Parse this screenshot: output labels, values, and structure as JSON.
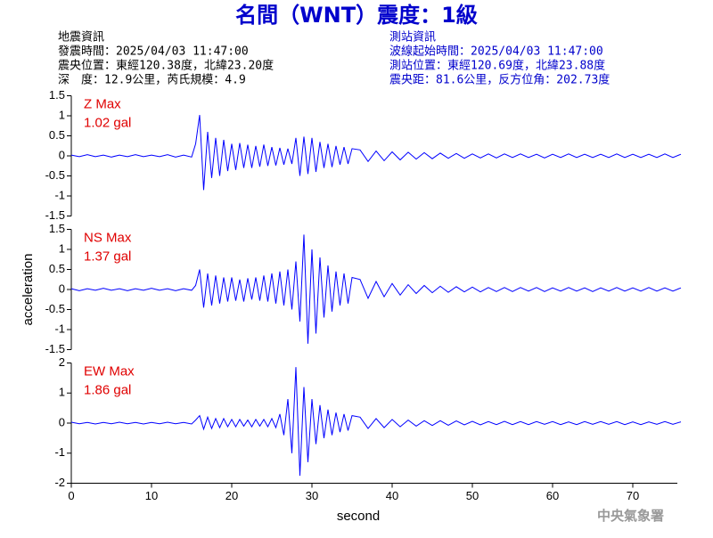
{
  "title": "名間（WNT）震度：1級",
  "event_info": {
    "heading": "地震資訊",
    "lines": [
      "發震時間：2025/04/03 11:47:00",
      "震央位置：東經120.38度，北緯23.20度",
      "深　度：12.9公里，芮氏規模：4.9"
    ]
  },
  "station_info": {
    "heading": "測站資訊",
    "lines": [
      "波線起始時間：2025/04/03 11:47:00",
      "測站位置：東經120.69度，北緯23.88度",
      "震央距：81.6公里，反方位角：202.73度"
    ]
  },
  "footer": "中央氣象署",
  "chart_data": [
    {
      "type": "line",
      "color": "#0000ff",
      "annotations": [
        "Z Max",
        "1.02 gal"
      ],
      "xlim": [
        0,
        76
      ],
      "ylim": [
        -1.5,
        1.5
      ],
      "yticks": [
        -1.5,
        -1,
        -0.5,
        0,
        0.5,
        1,
        1.5
      ],
      "x": [
        0,
        1,
        2,
        3,
        4,
        5,
        6,
        7,
        8,
        9,
        10,
        11,
        12,
        13,
        14,
        15,
        15.5,
        16,
        16.5,
        17,
        17.5,
        18,
        18.5,
        19,
        19.5,
        20,
        20.5,
        21,
        21.5,
        22,
        22.5,
        23,
        23.5,
        24,
        24.5,
        25,
        25.5,
        26,
        26.5,
        27,
        27.5,
        28,
        28.5,
        29,
        29.5,
        30,
        30.5,
        31,
        31.5,
        32,
        32.5,
        33,
        33.5,
        34,
        34.5,
        35,
        36,
        37,
        38,
        39,
        40,
        41,
        42,
        43,
        44,
        45,
        46,
        47,
        48,
        49,
        50,
        51,
        52,
        53,
        54,
        55,
        56,
        57,
        58,
        59,
        60,
        61,
        62,
        63,
        64,
        65,
        66,
        67,
        68,
        69,
        70,
        71,
        72,
        73,
        74,
        75,
        76
      ],
      "values": [
        0.02,
        -0.02,
        0.03,
        -0.02,
        0.02,
        -0.03,
        0.02,
        -0.02,
        0.03,
        -0.02,
        0.02,
        -0.02,
        0.03,
        -0.03,
        0.02,
        -0.03,
        0.3,
        1.02,
        -0.85,
        0.6,
        -0.55,
        0.45,
        -0.5,
        0.4,
        -0.38,
        0.3,
        -0.35,
        0.32,
        -0.3,
        0.28,
        -0.3,
        0.25,
        -0.27,
        0.28,
        -0.25,
        0.22,
        -0.24,
        0.2,
        -0.22,
        0.18,
        -0.2,
        0.45,
        -0.5,
        0.48,
        -0.45,
        0.45,
        -0.4,
        0.35,
        -0.3,
        0.3,
        -0.28,
        0.25,
        -0.22,
        0.22,
        -0.2,
        0.18,
        0.15,
        -0.14,
        0.12,
        -0.12,
        0.1,
        -0.1,
        0.09,
        -0.08,
        0.08,
        -0.07,
        0.07,
        -0.06,
        0.06,
        -0.06,
        0.05,
        -0.05,
        0.05,
        -0.05,
        0.05,
        -0.04,
        0.05,
        -0.04,
        0.04,
        -0.05,
        0.04,
        -0.04,
        0.05,
        -0.04,
        0.04,
        -0.04,
        0.04,
        -0.04,
        0.05,
        -0.04,
        0.04,
        -0.04,
        0.04,
        -0.04,
        0.05,
        -0.04,
        0.04
      ]
    },
    {
      "type": "line",
      "color": "#0000ff",
      "annotations": [
        "NS Max",
        "1.37 gal"
      ],
      "ylabel": "acceleration",
      "xlim": [
        0,
        76
      ],
      "ylim": [
        -1.5,
        1.5
      ],
      "yticks": [
        -1.5,
        -1,
        -0.5,
        0,
        0.5,
        1,
        1.5
      ],
      "x": [
        0,
        1,
        2,
        3,
        4,
        5,
        6,
        7,
        8,
        9,
        10,
        11,
        12,
        13,
        14,
        15,
        15.5,
        16,
        16.5,
        17,
        17.5,
        18,
        18.5,
        19,
        19.5,
        20,
        20.5,
        21,
        21.5,
        22,
        22.5,
        23,
        23.5,
        24,
        24.5,
        25,
        25.5,
        26,
        26.5,
        27,
        27.5,
        28,
        28.5,
        29,
        29.5,
        30,
        30.5,
        31,
        31.5,
        32,
        32.5,
        33,
        33.5,
        34,
        34.5,
        35,
        36,
        37,
        38,
        39,
        40,
        41,
        42,
        43,
        44,
        45,
        46,
        47,
        48,
        49,
        50,
        51,
        52,
        53,
        54,
        55,
        56,
        57,
        58,
        59,
        60,
        61,
        62,
        63,
        64,
        65,
        66,
        67,
        68,
        69,
        70,
        71,
        72,
        73,
        74,
        75,
        76
      ],
      "values": [
        0.02,
        -0.03,
        0.02,
        -0.02,
        0.03,
        -0.02,
        0.02,
        -0.03,
        0.02,
        -0.02,
        0.03,
        -0.02,
        0.02,
        -0.03,
        0.02,
        -0.02,
        0.1,
        0.5,
        -0.45,
        0.4,
        -0.4,
        0.35,
        -0.35,
        0.3,
        -0.3,
        0.3,
        -0.28,
        0.25,
        -0.3,
        0.28,
        -0.25,
        0.3,
        -0.28,
        0.35,
        -0.3,
        0.4,
        -0.35,
        0.45,
        -0.4,
        0.5,
        -0.5,
        0.7,
        -0.8,
        1.37,
        -1.35,
        1.0,
        -1.1,
        0.8,
        -0.7,
        0.6,
        -0.55,
        0.45,
        -0.4,
        0.4,
        -0.35,
        0.3,
        0.25,
        -0.22,
        0.2,
        -0.18,
        0.15,
        -0.14,
        0.12,
        -0.1,
        0.1,
        -0.08,
        0.08,
        -0.07,
        0.07,
        -0.06,
        0.06,
        -0.06,
        0.05,
        -0.05,
        0.05,
        -0.05,
        0.05,
        -0.04,
        0.05,
        -0.05,
        0.04,
        -0.04,
        0.05,
        -0.04,
        0.04,
        -0.05,
        0.04,
        -0.04,
        0.05,
        -0.04,
        0.04,
        -0.04,
        0.05,
        -0.04,
        0.04,
        -0.04,
        0.04
      ]
    },
    {
      "type": "line",
      "color": "#0000ff",
      "annotations": [
        "EW Max",
        "1.86 gal"
      ],
      "xlabel": "second",
      "xlim": [
        0,
        76
      ],
      "xticks": [
        0,
        10,
        20,
        30,
        40,
        50,
        60,
        70
      ],
      "ylim": [
        -2,
        2
      ],
      "yticks": [
        -2,
        -1,
        0,
        1,
        2
      ],
      "x": [
        0,
        1,
        2,
        3,
        4,
        5,
        6,
        7,
        8,
        9,
        10,
        11,
        12,
        13,
        14,
        15,
        15.5,
        16,
        16.5,
        17,
        17.5,
        18,
        18.5,
        19,
        19.5,
        20,
        20.5,
        21,
        21.5,
        22,
        22.5,
        23,
        23.5,
        24,
        24.5,
        25,
        25.5,
        26,
        26.5,
        27,
        27.5,
        28,
        28.5,
        29,
        29.5,
        30,
        30.5,
        31,
        31.5,
        32,
        32.5,
        33,
        33.5,
        34,
        34.5,
        35,
        36,
        37,
        38,
        39,
        40,
        41,
        42,
        43,
        44,
        45,
        46,
        47,
        48,
        49,
        50,
        51,
        52,
        53,
        54,
        55,
        56,
        57,
        58,
        59,
        60,
        61,
        62,
        63,
        64,
        65,
        66,
        67,
        68,
        69,
        70,
        71,
        72,
        73,
        74,
        75,
        76
      ],
      "values": [
        0.03,
        -0.02,
        0.02,
        -0.03,
        0.02,
        -0.02,
        0.03,
        -0.02,
        0.02,
        -0.03,
        0.02,
        -0.02,
        0.03,
        -0.02,
        0.02,
        -0.03,
        0.1,
        0.25,
        -0.2,
        0.2,
        -0.18,
        0.15,
        -0.15,
        0.15,
        -0.12,
        0.12,
        -0.12,
        0.12,
        -0.1,
        0.1,
        -0.12,
        0.12,
        -0.1,
        0.12,
        -0.12,
        0.15,
        -0.15,
        0.3,
        -0.4,
        0.8,
        -1.0,
        1.86,
        -1.75,
        1.2,
        -1.3,
        0.8,
        -0.7,
        0.6,
        -0.5,
        0.45,
        -0.4,
        0.35,
        -0.3,
        0.3,
        -0.25,
        0.25,
        0.2,
        -0.18,
        0.15,
        -0.15,
        0.12,
        -0.12,
        0.1,
        -0.1,
        0.08,
        -0.08,
        0.08,
        -0.07,
        0.07,
        -0.06,
        0.06,
        -0.06,
        0.05,
        -0.05,
        0.06,
        -0.05,
        0.05,
        -0.05,
        0.05,
        -0.04,
        0.05,
        -0.05,
        0.04,
        -0.05,
        0.05,
        -0.04,
        0.05,
        -0.04,
        0.05,
        -0.05,
        0.04,
        -0.05,
        0.04,
        -0.04,
        0.05,
        -0.04,
        0.04
      ]
    }
  ]
}
